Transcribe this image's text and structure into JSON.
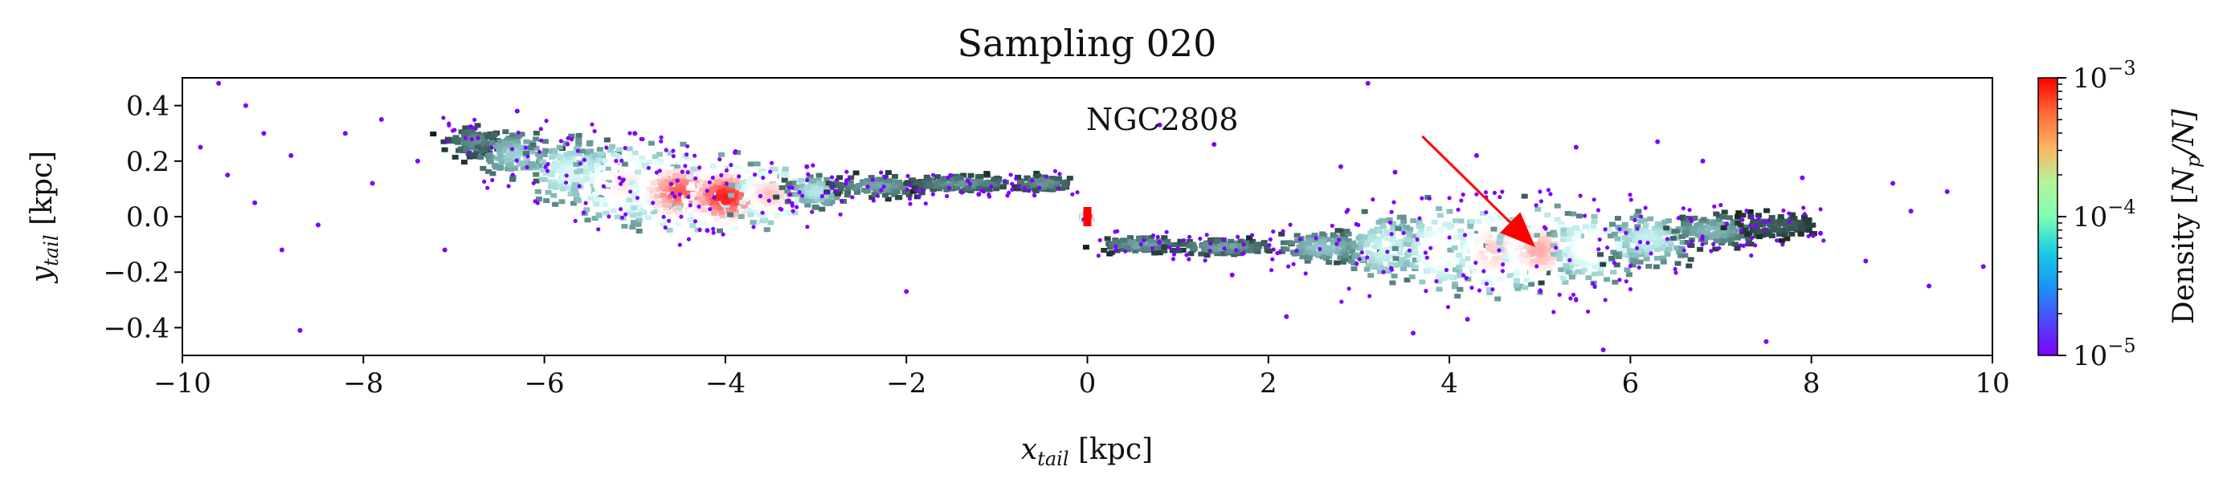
{
  "chart_data": {
    "type": "scatter",
    "title": "Sampling 020",
    "xlabel_main": "x",
    "xlabel_sub": "tail",
    "xlabel_unit": " [kpc]",
    "ylabel_main": "y",
    "ylabel_sub": "tail",
    "ylabel_unit": " [kpc]",
    "xlim": [
      -10,
      10
    ],
    "ylim": [
      -0.5,
      0.5
    ],
    "xticks": [
      -10,
      -8,
      -6,
      -4,
      -2,
      0,
      2,
      4,
      6,
      8,
      10
    ],
    "xtick_labels": [
      "−10",
      "−8",
      "−6",
      "−4",
      "−2",
      "0",
      "2",
      "4",
      "6",
      "8",
      "10"
    ],
    "yticks": [
      0.4,
      0.2,
      0.0,
      -0.2,
      -0.4
    ],
    "ytick_labels": [
      "0.4",
      "0.2",
      "0.0",
      "−0.2",
      "−0.4"
    ],
    "colorbar": {
      "label_prefix": "Density [",
      "label_math": "N",
      "label_sub": "p",
      "label_suffix": "/N]",
      "scale": "log",
      "range": [
        1e-05,
        0.001
      ],
      "tick_values": [
        0.001,
        0.0001,
        1e-05
      ],
      "tick_bases": [
        "10",
        "10",
        "10"
      ],
      "tick_exponents": [
        "−3",
        "−4",
        "−5"
      ],
      "colormap": "rainbow"
    },
    "annotation": {
      "text": "NGC2808",
      "text_at": [
        1.8,
        0.33
      ],
      "arrow_to": [
        4.95,
        -0.11
      ],
      "color": "#ff0000"
    },
    "cluster": {
      "x": 0.0,
      "y": 0.0
    },
    "density_stream": [
      {
        "x": -6.8,
        "y": 0.27,
        "w": 0.3,
        "h": 0.06,
        "d": 0.18
      },
      {
        "x": -6.3,
        "y": 0.22,
        "w": 0.45,
        "h": 0.09,
        "d": 0.3
      },
      {
        "x": -5.7,
        "y": 0.16,
        "w": 0.55,
        "h": 0.12,
        "d": 0.42
      },
      {
        "x": -5.1,
        "y": 0.12,
        "w": 0.6,
        "h": 0.14,
        "d": 0.62
      },
      {
        "x": -4.5,
        "y": 0.09,
        "w": 0.55,
        "h": 0.13,
        "d": 0.88
      },
      {
        "x": -4.0,
        "y": 0.07,
        "w": 0.5,
        "h": 0.12,
        "d": 0.96
      },
      {
        "x": -3.5,
        "y": 0.08,
        "w": 0.4,
        "h": 0.1,
        "d": 0.72
      },
      {
        "x": -3.0,
        "y": 0.09,
        "w": 0.35,
        "h": 0.06,
        "d": 0.35
      },
      {
        "x": -2.3,
        "y": 0.11,
        "w": 0.55,
        "h": 0.04,
        "d": 0.22
      },
      {
        "x": -1.4,
        "y": 0.12,
        "w": 0.6,
        "h": 0.03,
        "d": 0.2
      },
      {
        "x": -0.5,
        "y": 0.12,
        "w": 0.35,
        "h": 0.03,
        "d": 0.2
      },
      {
        "x": 0.0,
        "y": 0.0,
        "w": 0.05,
        "h": 0.02,
        "d": 1.0
      },
      {
        "x": 0.6,
        "y": -0.1,
        "w": 0.45,
        "h": 0.03,
        "d": 0.22
      },
      {
        "x": 1.5,
        "y": -0.11,
        "w": 0.55,
        "h": 0.03,
        "d": 0.22
      },
      {
        "x": 2.6,
        "y": -0.11,
        "w": 0.5,
        "h": 0.06,
        "d": 0.28
      },
      {
        "x": 3.3,
        "y": -0.11,
        "w": 0.45,
        "h": 0.13,
        "d": 0.4
      },
      {
        "x": 3.9,
        "y": -0.12,
        "w": 0.45,
        "h": 0.16,
        "d": 0.52
      },
      {
        "x": 4.5,
        "y": -0.12,
        "w": 0.45,
        "h": 0.15,
        "d": 0.7
      },
      {
        "x": 5.0,
        "y": -0.12,
        "w": 0.45,
        "h": 0.14,
        "d": 0.76
      },
      {
        "x": 5.6,
        "y": -0.11,
        "w": 0.5,
        "h": 0.12,
        "d": 0.55
      },
      {
        "x": 6.2,
        "y": -0.08,
        "w": 0.5,
        "h": 0.1,
        "d": 0.38
      },
      {
        "x": 6.9,
        "y": -0.05,
        "w": 0.5,
        "h": 0.06,
        "d": 0.25
      },
      {
        "x": 7.6,
        "y": -0.03,
        "w": 0.5,
        "h": 0.05,
        "d": 0.12
      }
    ],
    "sparse_points": [
      {
        "x": -9.6,
        "y": 0.48
      },
      {
        "x": -9.3,
        "y": 0.4
      },
      {
        "x": -9.1,
        "y": 0.3
      },
      {
        "x": -8.8,
        "y": 0.22
      },
      {
        "x": -9.5,
        "y": 0.15
      },
      {
        "x": -9.2,
        "y": 0.05
      },
      {
        "x": -8.5,
        "y": -0.03
      },
      {
        "x": -8.9,
        "y": -0.12
      },
      {
        "x": -8.7,
        "y": -0.41
      },
      {
        "x": -9.8,
        "y": 0.25
      },
      {
        "x": -7.8,
        "y": 0.35
      },
      {
        "x": -7.4,
        "y": 0.2
      },
      {
        "x": -7.9,
        "y": 0.12
      },
      {
        "x": -8.2,
        "y": 0.3
      },
      {
        "x": -6.3,
        "y": 0.38
      },
      {
        "x": -7.1,
        "y": -0.12
      },
      {
        "x": -2.0,
        "y": -0.27
      },
      {
        "x": -1.2,
        "y": 0.08
      },
      {
        "x": 0.8,
        "y": 0.33
      },
      {
        "x": 1.4,
        "y": 0.26
      },
      {
        "x": 3.1,
        "y": 0.48
      },
      {
        "x": 3.4,
        "y": 0.16
      },
      {
        "x": 4.3,
        "y": 0.22
      },
      {
        "x": 5.4,
        "y": 0.25
      },
      {
        "x": 6.3,
        "y": 0.27
      },
      {
        "x": 7.9,
        "y": 0.14
      },
      {
        "x": 8.9,
        "y": 0.12
      },
      {
        "x": 9.5,
        "y": 0.09
      },
      {
        "x": 9.9,
        "y": -0.18
      },
      {
        "x": 9.3,
        "y": -0.25
      },
      {
        "x": 8.6,
        "y": -0.16
      },
      {
        "x": 7.5,
        "y": -0.45
      },
      {
        "x": 5.7,
        "y": -0.48
      },
      {
        "x": 4.2,
        "y": -0.37
      },
      {
        "x": 2.2,
        "y": -0.36
      },
      {
        "x": 1.6,
        "y": -0.21
      },
      {
        "x": 3.6,
        "y": -0.42
      },
      {
        "x": 8.1,
        "y": -0.06
      },
      {
        "x": 9.1,
        "y": 0.02
      },
      {
        "x": 2.8,
        "y": 0.18
      },
      {
        "x": 6.8,
        "y": 0.2
      },
      {
        "x": -5.0,
        "y": 0.3
      },
      {
        "x": -4.2,
        "y": -0.05
      },
      {
        "x": -3.1,
        "y": 0.18
      }
    ]
  }
}
